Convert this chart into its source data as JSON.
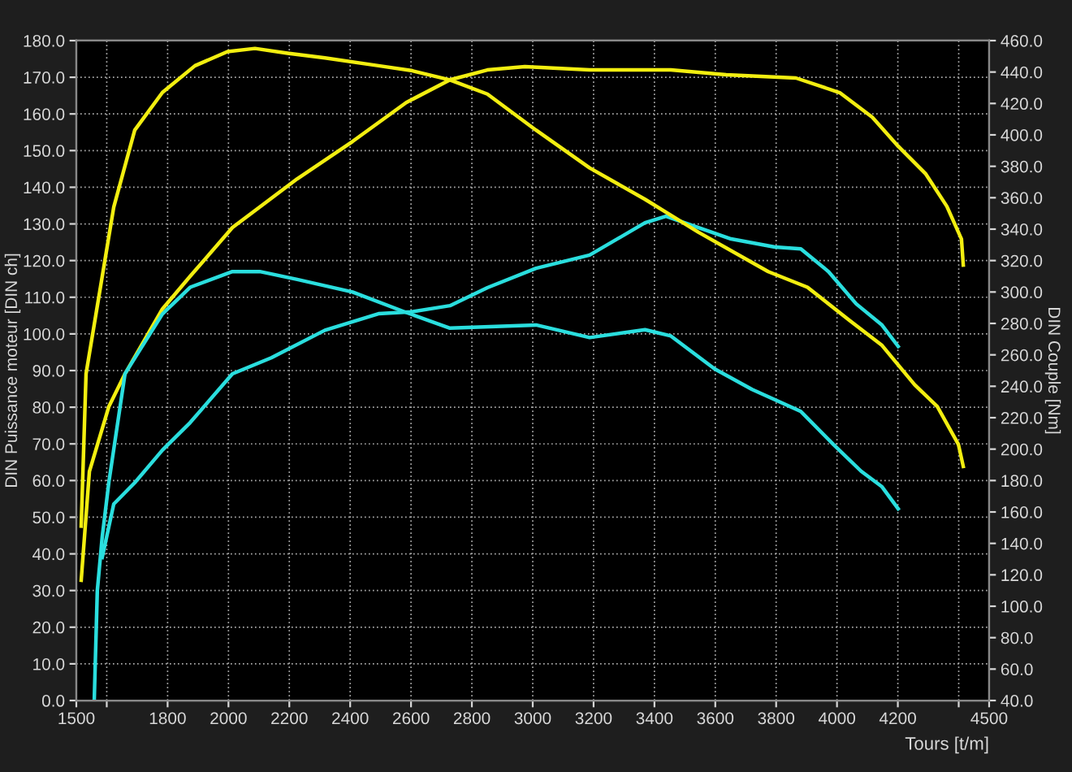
{
  "chart_data": {
    "type": "line",
    "xlabel": "Tours [t/m]",
    "ylabel": "DIN Puissance moteur [DIN ch]",
    "y2label": "DIN Couple [Nm]",
    "xlim": [
      1500,
      4500
    ],
    "xticks": [
      1500,
      {
        "value": 1600,
        "label": null
      },
      1800,
      2000,
      2200,
      2400,
      2600,
      2800,
      3000,
      3200,
      3400,
      3600,
      3800,
      4000,
      4200,
      {
        "value": 4400,
        "label": null
      },
      4500
    ],
    "ylim": [
      0,
      180
    ],
    "yticks": [
      {
        "value": 0,
        "label": "0.0"
      },
      {
        "value": 10,
        "label": "10.0"
      },
      {
        "value": 20,
        "label": "20.0"
      },
      {
        "value": 30,
        "label": "30.0"
      },
      {
        "value": 40,
        "label": "40.0"
      },
      {
        "value": 50,
        "label": "50.0"
      },
      {
        "value": 60,
        "label": "60.0"
      },
      {
        "value": 70,
        "label": "70.0"
      },
      {
        "value": 80,
        "label": "80.0"
      },
      {
        "value": 90,
        "label": "90.0"
      },
      {
        "value": 100,
        "label": "100.0"
      },
      {
        "value": 110,
        "label": "110.0"
      },
      {
        "value": 120,
        "label": "120.0"
      },
      {
        "value": 130,
        "label": "130.0"
      },
      {
        "value": 140,
        "label": "140.0"
      },
      {
        "value": 150,
        "label": "150.0"
      },
      {
        "value": 160,
        "label": "160.0"
      },
      {
        "value": 170,
        "label": "170.0"
      },
      {
        "value": 180,
        "label": "180.0"
      }
    ],
    "y2lim": [
      40,
      460
    ],
    "y2ticks": [
      {
        "value": 40,
        "label": "40.0"
      },
      {
        "value": 60,
        "label": "60.0"
      },
      {
        "value": 80,
        "label": "80.0"
      },
      {
        "value": 100,
        "label": "100.0"
      },
      {
        "value": 120,
        "label": "120.0"
      },
      {
        "value": 140,
        "label": "140.0"
      },
      {
        "value": 160,
        "label": "160.0"
      },
      {
        "value": 180,
        "label": "180.0"
      },
      {
        "value": 200,
        "label": "200.0"
      },
      {
        "value": 220,
        "label": "220.0"
      },
      {
        "value": 240,
        "label": "240.0"
      },
      {
        "value": 260,
        "label": "260.0"
      },
      {
        "value": 280,
        "label": "280.0"
      },
      {
        "value": 300,
        "label": "300.0"
      },
      {
        "value": 320,
        "label": "320.0"
      },
      {
        "value": 340,
        "label": "340.0"
      },
      {
        "value": 360,
        "label": "360.0"
      },
      {
        "value": 380,
        "label": "380.0"
      },
      {
        "value": 400,
        "label": "400.0"
      },
      {
        "value": 420,
        "label": "420.0"
      },
      {
        "value": 440,
        "label": "440.0"
      },
      {
        "value": 460,
        "label": "460.0"
      }
    ],
    "grid": true,
    "marker": "none",
    "line_style": "solid",
    "series": [
      {
        "color": "#f2ee10",
        "axis": "y2",
        "x": [
          1516,
          1532,
          1623,
          1692,
          1783,
          1890,
          1997,
          2087,
          2194,
          2317,
          2493,
          2600,
          2728,
          2851,
          3011,
          3187,
          3369,
          3545,
          3774,
          3903,
          4041,
          4148,
          4255,
          4330,
          4399,
          4415
        ],
        "values": [
          151,
          248,
          354,
          403,
          427,
          444,
          453,
          455,
          452,
          449,
          444,
          441,
          435,
          426,
          403,
          379,
          359,
          338,
          313,
          303,
          282,
          266,
          241,
          227,
          203,
          189
        ]
      },
      {
        "color": "#f2ee10",
        "x": [
          1516,
          1543,
          1607,
          1660,
          1783,
          1874,
          2013,
          2226,
          2408,
          2584,
          2728,
          2851,
          2974,
          3187,
          3454,
          3636,
          3865,
          4009,
          4116,
          4201,
          4292,
          4361,
          4409,
          4415
        ],
        "values": [
          32.8,
          62.5,
          80.2,
          89.1,
          106.8,
          115.7,
          129.0,
          142.3,
          152.5,
          163.1,
          169.3,
          172.0,
          172.9,
          172.0,
          172.0,
          170.7,
          169.8,
          165.8,
          159.1,
          151.2,
          143.6,
          134.8,
          125.9,
          118.8
        ]
      },
      {
        "color": "#2adede",
        "axis": "y2",
        "x": [
          1559,
          1569,
          1585,
          1607,
          1660,
          1783,
          1874,
          2013,
          2103,
          2226,
          2408,
          2584,
          2728,
          3011,
          3187,
          3369,
          3454,
          3598,
          3721,
          3881,
          3988,
          4079,
          4148,
          4201
        ],
        "values": [
          41,
          110,
          144,
          179,
          248,
          286,
          303,
          313,
          313,
          308,
          300,
          287,
          277,
          279,
          271,
          276,
          272,
          251,
          238,
          224,
          203,
          186,
          176,
          162
        ]
      },
      {
        "color": "#2adede",
        "x": [
          1585,
          1623,
          1692,
          1783,
          1874,
          2013,
          2141,
          2317,
          2493,
          2600,
          2728,
          2851,
          3011,
          3187,
          3369,
          3438,
          3545,
          3652,
          3796,
          3881,
          3972,
          4063,
          4148,
          4201
        ],
        "values": [
          39,
          53.6,
          59.4,
          68.3,
          75.8,
          89.1,
          93.5,
          101.0,
          105.5,
          106.0,
          107.7,
          112.6,
          117.9,
          121.5,
          130.3,
          132.1,
          129.0,
          125.9,
          123.7,
          123.2,
          117.0,
          108.2,
          102.4,
          96.6
        ]
      }
    ]
  }
}
